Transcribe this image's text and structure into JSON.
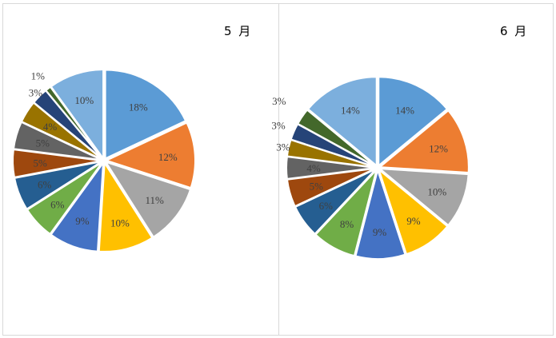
{
  "chart_data": [
    {
      "type": "pie",
      "title": "5 月",
      "values": [
        18,
        12,
        11,
        10,
        9,
        6,
        6,
        5,
        5,
        4,
        3,
        1,
        10
      ],
      "labels": [
        "18%",
        "12%",
        "11%",
        "10%",
        "9%",
        "6%",
        "6%",
        "5%",
        "5%",
        "4%",
        "3%",
        "1%",
        "10%"
      ],
      "colors": [
        "#5B9BD5",
        "#ED7D31",
        "#A5A5A5",
        "#FFC000",
        "#4472C4",
        "#70AD47",
        "#255E91",
        "#9E480E",
        "#636363",
        "#997300",
        "#264478",
        "#43682B",
        "#7CAFDD"
      ]
    },
    {
      "type": "pie",
      "title": "6 月",
      "values": [
        14,
        12,
        10,
        9,
        9,
        8,
        6,
        5,
        4,
        3,
        3,
        3,
        14
      ],
      "labels": [
        "14%",
        "12%",
        "10%",
        "9%",
        "9%",
        "8%",
        "6%",
        "5%",
        "4%",
        "3%",
        "3%",
        "3%",
        "14%"
      ],
      "colors": [
        "#5B9BD5",
        "#ED7D31",
        "#A5A5A5",
        "#FFC000",
        "#4472C4",
        "#70AD47",
        "#255E91",
        "#9E480E",
        "#636363",
        "#997300",
        "#264478",
        "#43682B",
        "#7CAFDD"
      ]
    }
  ]
}
